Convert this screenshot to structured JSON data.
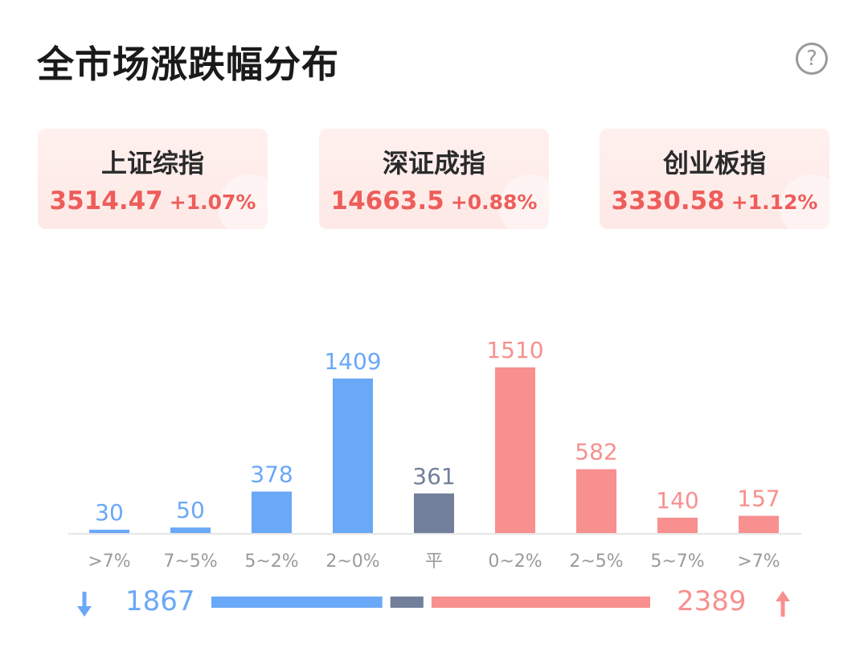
{
  "title": "全市场涨跌幅分布",
  "help_icon": "question-circle-icon",
  "indices": [
    {
      "name": "上证综指",
      "value": "3514.47",
      "change": "+1.07%"
    },
    {
      "name": "深证成指",
      "value": "14663.5",
      "change": "+0.88%"
    },
    {
      "name": "创业板指",
      "value": "3330.58",
      "change": "+1.12%"
    }
  ],
  "colors": {
    "down": "#6aa8f8",
    "flat": "#727f9b",
    "up": "#f7908f",
    "up_text": "#ee5d5a"
  },
  "chart_data": {
    "type": "bar",
    "categories": [
      ">7%",
      "7~5%",
      "5~2%",
      "2~0%",
      "平",
      "0~2%",
      "2~5%",
      "5~7%",
      ">7%"
    ],
    "values": [
      30,
      50,
      378,
      1409,
      361,
      1510,
      582,
      140,
      157
    ],
    "groups": [
      "down",
      "down",
      "down",
      "down",
      "flat",
      "up",
      "up",
      "up",
      "up"
    ],
    "ylim": [
      0,
      1510
    ]
  },
  "summary": {
    "down_total": "1867",
    "up_total": "2389",
    "flat_total": 361,
    "down_icon": "arrow-down-icon",
    "up_icon": "arrow-up-icon"
  }
}
